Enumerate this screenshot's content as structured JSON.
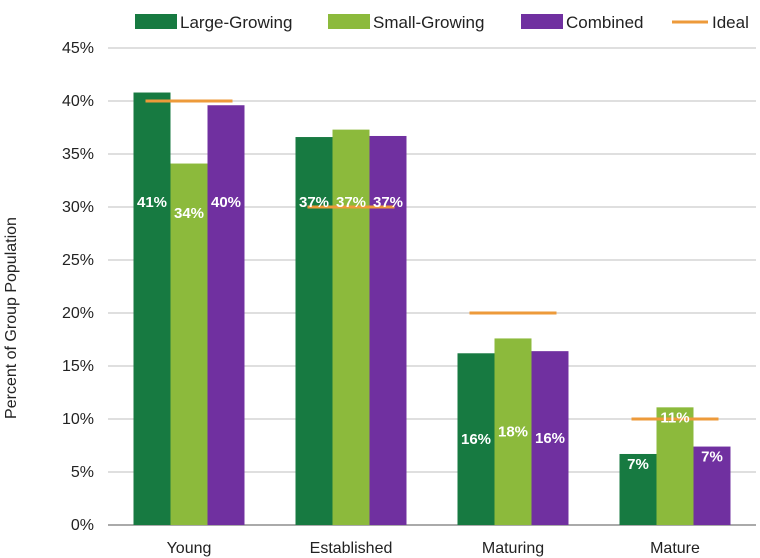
{
  "chart_data": {
    "type": "bar",
    "title": "",
    "xlabel": "",
    "ylabel": "Percent of Group Population",
    "ylim": [
      0,
      45
    ],
    "yticks": [
      "0%",
      "5%",
      "10%",
      "15%",
      "20%",
      "25%",
      "30%",
      "35%",
      "40%",
      "45%"
    ],
    "grid": true,
    "legend_position": "top",
    "categories": [
      "Young",
      "Established",
      "Maturing",
      "Mature"
    ],
    "series": [
      {
        "name": "Large-Growing",
        "color": "#177a41",
        "values": [
          40.8,
          36.6,
          16.2,
          6.7
        ],
        "labels": [
          "41%",
          "37%",
          "16%",
          "7%"
        ]
      },
      {
        "name": "Small-Growing",
        "color": "#8cba3c",
        "values": [
          34.1,
          37.3,
          17.6,
          11.1
        ],
        "labels": [
          "34%",
          "37%",
          "18%",
          "11%"
        ]
      },
      {
        "name": "Combined",
        "color": "#7030a0",
        "values": [
          39.6,
          36.7,
          16.4,
          7.4
        ],
        "labels": [
          "40%",
          "37%",
          "16%",
          "7%"
        ]
      }
    ],
    "ideal": {
      "name": "Ideal",
      "color": "#ed9a3a",
      "values": [
        40,
        30,
        20,
        10
      ]
    }
  }
}
